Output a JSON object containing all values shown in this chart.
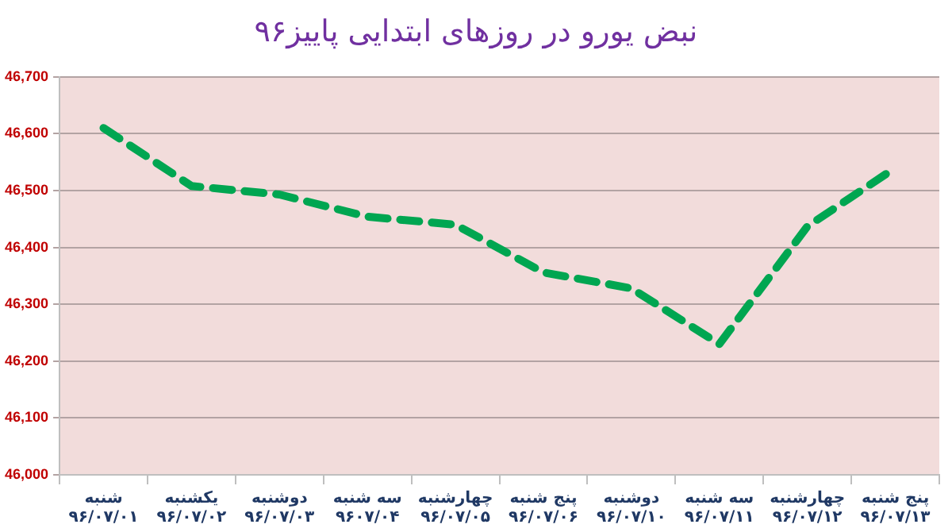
{
  "chart_data": {
    "type": "line",
    "title": "نبض یورو در روزهای ابتدایی پاییز۹۶",
    "categories": [
      "شنبه\n۹۶/۰۷/۰۱",
      "یکشنبه\n۹۶/۰۷/۰۲",
      "دوشنبه\n۹۶/۰۷/۰۳",
      "سه شنبه\n۹۶۰۷/۰۴",
      "چهارشنبه\n۹۶/۰۷/۰۵",
      "پنج شنبه\n۹۶/۰۷/۰۶",
      "دوشنبه\n۹۶/۰۷/۱۰",
      "سه شنبه\n۹۶/۰۷/۱۱",
      "چهارشنبه\n۹۶/۰۷/۱۲",
      "پنج شنبه\n۹۶/۰۷/۱۳"
    ],
    "series": [
      {
        "color": "#00a651",
        "values": [
          46610,
          46508,
          46493,
          46454,
          46440,
          46356,
          46328,
          46230,
          46437,
          46540
        ]
      }
    ],
    "ylim": [
      46000,
      46700
    ],
    "yticks": [
      {
        "value": 46000,
        "label": "46,000"
      },
      {
        "value": 46100,
        "label": "46,100"
      },
      {
        "value": 46200,
        "label": "46,200"
      },
      {
        "value": 46300,
        "label": "46,300"
      },
      {
        "value": 46400,
        "label": "46,400"
      },
      {
        "value": 46500,
        "label": "46,500"
      },
      {
        "value": 46600,
        "label": "46,600"
      },
      {
        "value": 46700,
        "label": "46,700"
      }
    ],
    "grid": "y",
    "legend": false,
    "marker": "none",
    "line_style": "dashed"
  }
}
